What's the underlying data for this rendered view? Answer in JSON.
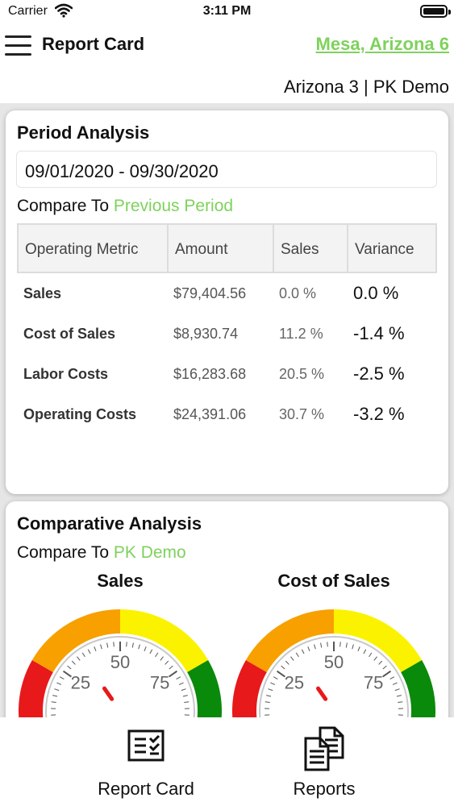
{
  "status_bar": {
    "carrier": "Carrier",
    "time": "3:11 PM"
  },
  "nav": {
    "title": "Report Card",
    "location": "Mesa, Arizona 6",
    "menu_icon": "hamburger-menu-icon"
  },
  "sub_header": "Arizona 3 | PK Demo",
  "period_analysis": {
    "title": "Period Analysis",
    "date_range": "09/01/2020 - 09/30/2020",
    "compare_prefix": "Compare To ",
    "compare_value": "Previous Period",
    "columns": [
      "Operating Metric",
      "Amount",
      "Sales",
      "Variance"
    ],
    "rows": [
      {
        "metric": "Sales",
        "amount": "$79,404.56",
        "sales": "0.0 %",
        "variance": "0.0 %"
      },
      {
        "metric": "Cost of Sales",
        "amount": "$8,930.74",
        "sales": "11.2 %",
        "variance": "-1.4 %"
      },
      {
        "metric": "Labor Costs",
        "amount": "$16,283.68",
        "sales": "20.5 %",
        "variance": "-2.5 %"
      },
      {
        "metric": "Operating Costs",
        "amount": "$24,391.06",
        "sales": "30.7 %",
        "variance": "-3.2 %"
      }
    ]
  },
  "comparative_analysis": {
    "title": "Comparative Analysis",
    "compare_prefix": "Compare To ",
    "compare_value": "PK Demo",
    "gauges": [
      {
        "title": "Sales",
        "ticks": [
          "25",
          "50",
          "75"
        ]
      },
      {
        "title": "Cost of Sales",
        "ticks": [
          "25",
          "50",
          "75"
        ]
      }
    ],
    "colors": {
      "red": "#e8191a",
      "orange": "#f7a000",
      "yellow": "#fbf200",
      "green": "#0a8a0a",
      "needle": "#e8191a"
    }
  },
  "tabs": [
    {
      "label": "Report Card",
      "icon": "report-card-icon"
    },
    {
      "label": "Reports",
      "icon": "reports-icon"
    }
  ],
  "accent_color": "#7ed25c"
}
